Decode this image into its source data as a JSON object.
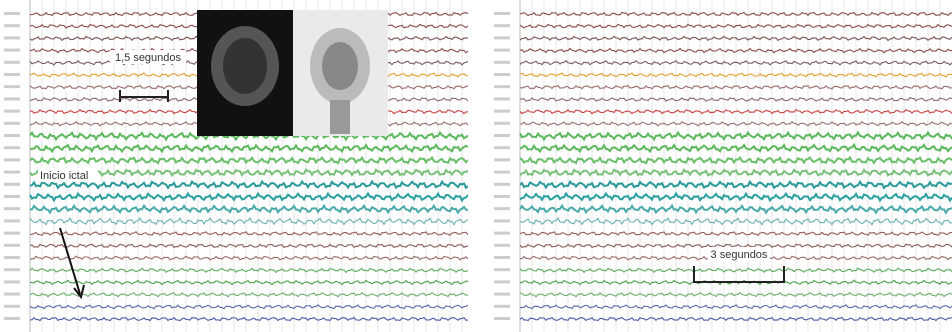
{
  "left_panel": {
    "scale_label": "1,5 segundos",
    "onset_label": "Inicio ictal"
  },
  "right_panel": {
    "scale_label": "3 segundos"
  }
}
